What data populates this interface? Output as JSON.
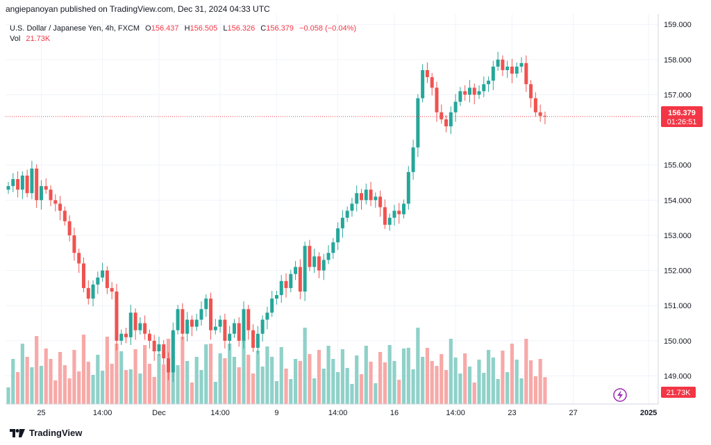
{
  "header": {
    "publisher_line": "angiepanoyan published on TradingView.com, Dec 31, 2024 04:33 UTC"
  },
  "legend": {
    "symbol": "U.S. Dollar / Japanese Yen, 4h, FXCM",
    "open_label": "O",
    "open": "156.437",
    "high_label": "H",
    "high": "156.505",
    "low_label": "L",
    "low": "156.326",
    "close_label": "C",
    "close": "156.379",
    "change": "−0.058 (−0.04%)",
    "vol_label": "Vol",
    "vol": "21.73K"
  },
  "price_tag": {
    "price": "156.379",
    "countdown": "01:26:51"
  },
  "volume_tag": "21.73K",
  "footer": {
    "brand": "TradingView"
  },
  "colors": {
    "up": "#26a69a",
    "down": "#ef5350",
    "vol_up": "#8fd1c9",
    "vol_down": "#f7a9a7",
    "grid": "#f0f3fa",
    "axis_text": "#131722",
    "last_price": "#f23645"
  },
  "chart_data": {
    "type": "candlestick",
    "symbol": "U.S. Dollar / Japanese Yen",
    "interval": "4h",
    "ylim": [
      148.2,
      159.3
    ],
    "y_ticks": [
      "159.000",
      "158.000",
      "157.000",
      "155.000",
      "154.000",
      "153.000",
      "152.000",
      "151.000",
      "150.000",
      "149.000"
    ],
    "x_ticks": [
      {
        "label": "25",
        "i": 7
      },
      {
        "label": "14:00",
        "i": 20
      },
      {
        "label": "Dec",
        "i": 32
      },
      {
        "label": "14:00",
        "i": 45
      },
      {
        "label": "9",
        "i": 57
      },
      {
        "label": "14:00",
        "i": 70
      },
      {
        "label": "16",
        "i": 82
      },
      {
        "label": "14:00",
        "i": 95
      },
      {
        "label": "23",
        "i": 107
      },
      {
        "label": "27",
        "i": 120
      },
      {
        "label": "2025",
        "i": 136
      }
    ],
    "candles_close": [
      154.4,
      154.6,
      154.3,
      154.7,
      154.2,
      154.9,
      154.0,
      154.4,
      154.3,
      154.0,
      153.9,
      153.7,
      153.4,
      153.0,
      152.5,
      152.2,
      151.5,
      151.2,
      151.6,
      151.8,
      152.0,
      151.5,
      151.4,
      150.0,
      150.2,
      150.1,
      150.8,
      150.3,
      150.5,
      150.2,
      150.0,
      149.7,
      149.9,
      149.5,
      149.1,
      150.3,
      150.9,
      150.2,
      150.6,
      150.4,
      150.6,
      150.9,
      151.2,
      150.3,
      150.4,
      150.6,
      150.0,
      150.2,
      150.5,
      150.0,
      150.9,
      150.3,
      149.8,
      150.2,
      150.6,
      150.8,
      151.2,
      151.3,
      151.7,
      151.5,
      151.9,
      152.1,
      151.4,
      152.7,
      152.1,
      152.4,
      152.0,
      152.3,
      152.5,
      152.8,
      153.2,
      153.5,
      153.7,
      153.9,
      154.2,
      154.0,
      154.3,
      154.0,
      154.1,
      153.8,
      153.3,
      153.5,
      153.7,
      153.6,
      153.9,
      154.8,
      155.5,
      156.9,
      157.7,
      157.5,
      157.2,
      156.5,
      156.3,
      156.1,
      156.5,
      156.8,
      157.1,
      157.0,
      157.2,
      157.0,
      157.1,
      157.3,
      157.4,
      157.8,
      158.0,
      157.7,
      157.8,
      157.6,
      157.8,
      157.9,
      157.3,
      156.9,
      156.5,
      156.4,
      156.38
    ],
    "volume": "relative volume bars",
    "last_price": 156.379,
    "title": "U.S. Dollar / Japanese Yen, 4h, FXCM"
  }
}
